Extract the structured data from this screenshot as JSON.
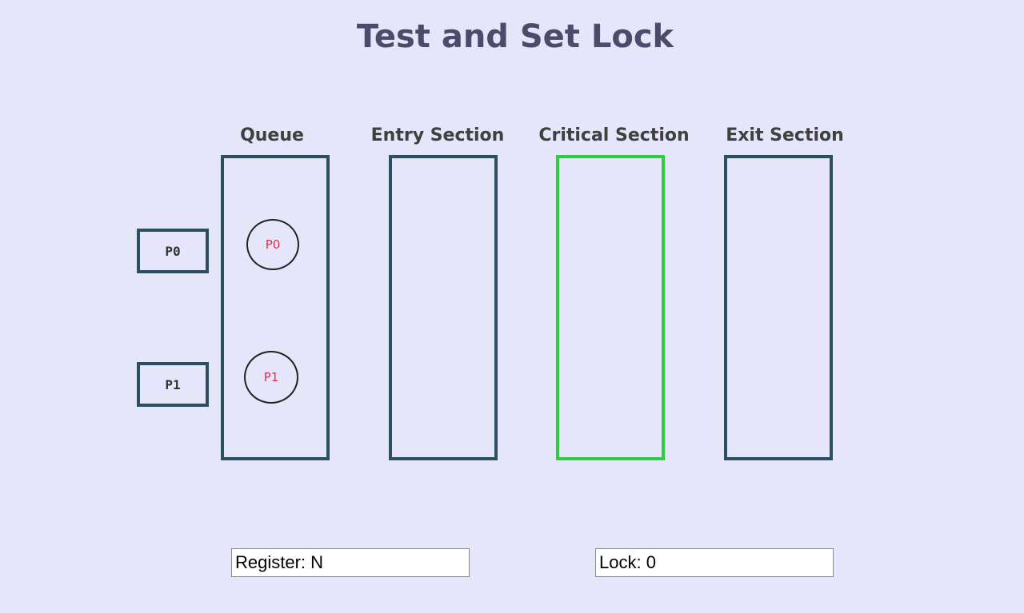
{
  "title": "Test and Set Lock",
  "sections": {
    "queue": "Queue",
    "entry": "Entry Section",
    "critical": "Critical Section",
    "exit": "Exit Section"
  },
  "process_buttons": [
    "P0",
    "P1"
  ],
  "queue_processes": [
    "P0",
    "P1"
  ],
  "status": {
    "register": "Register: N",
    "lock": "Lock: 0"
  },
  "colors": {
    "background": "#e6e6fa",
    "box_border": "#2c5060",
    "critical_border": "#2ecc40",
    "process_text": "#e0304a"
  }
}
